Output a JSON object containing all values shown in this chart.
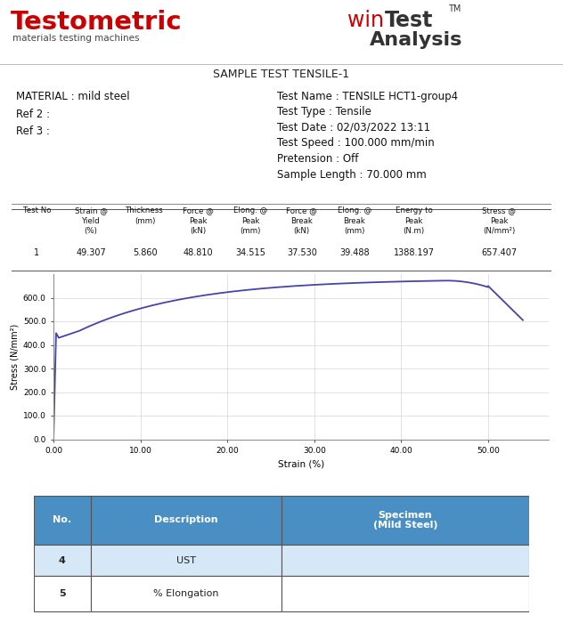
{
  "title_left": "Testometric",
  "subtitle_left": "materials testing machines",
  "title_right_win": "win",
  "title_right_test": "Test",
  "title_right_tm": "TM",
  "title_right_analysis": "Analysis",
  "sample_title": "SAMPLE TEST TENSILE-1",
  "material": "MATERIAL : mild steel",
  "ref2": "Ref 2 :",
  "ref3": "Ref 3 :",
  "test_name": "Test Name : TENSILE HCT1-group4",
  "test_type": "Test Type : Tensile",
  "test_date": "Test Date : 02/03/2022 13:11",
  "test_speed": "Test Speed : 100.000 mm/min",
  "pretension": "Pretension : Off",
  "sample_length": "Sample Length : 70.000 mm",
  "col_headers": [
    "Test No",
    "Strain @\nYield\n(%)",
    "Thickness\n(mm)",
    "Force @\nPeak\n(kN)",
    "Elong. @\nPeak\n(mm)",
    "Force @\nBreak\n(kN)",
    "Elong. @\nBreak\n(mm)",
    "Energy to\nPeak\n(N.m)",
    "Stress @\nPeak\n(N/mm²)"
  ],
  "data_row": [
    "1",
    "49.307",
    "5.860",
    "48.810",
    "34.515",
    "37.530",
    "39.488",
    "1388.197",
    "657.407"
  ],
  "xlabel": "Strain (%)",
  "ylabel": "Stress (N/mm²)",
  "ylim": [
    0,
    700
  ],
  "xlim": [
    0,
    57
  ],
  "yticks": [
    0,
    100,
    200,
    300,
    400,
    500,
    600
  ],
  "xticks": [
    0,
    10,
    20,
    30,
    40,
    50
  ],
  "xtick_labels": [
    "0.00",
    "10.00",
    "20.00",
    "30.00",
    "40.00",
    "50.00"
  ],
  "ytick_labels": [
    "0.0",
    "100.0",
    "200.0",
    "300.0",
    "400.0",
    "500.0",
    "600.0"
  ],
  "curve_color": "#4444aa",
  "bg_color": "#ffffff",
  "table_header_bg": "#4a8fc4",
  "table_header_text": "#ffffff",
  "table_row_bg_odd": "#d6e8f7",
  "table_row_bg_even": "#ffffff",
  "table_border": "#555555",
  "table_rows": [
    [
      "4",
      "UST",
      ""
    ],
    [
      "5",
      "% Elongation",
      ""
    ]
  ],
  "table_col_headers": [
    "No.",
    "Description",
    "Specimen\n(Mild Steel)"
  ]
}
